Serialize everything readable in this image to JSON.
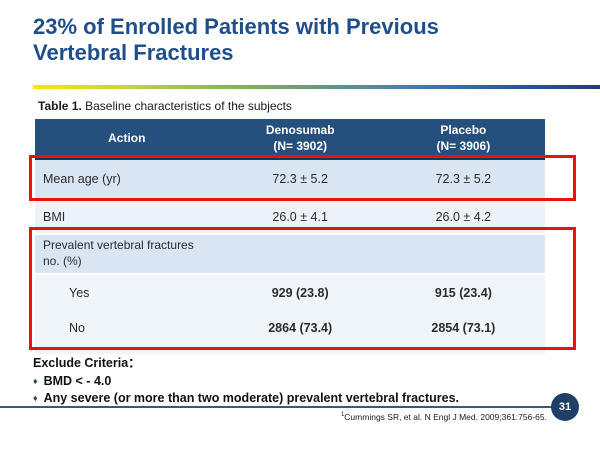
{
  "slide": {
    "title": "23% of Enrolled Patients with Previous Vertebral Fractures",
    "page_number": "31"
  },
  "caption": {
    "prefix": "Table 1.",
    "text": " Baseline characteristics of the subjects"
  },
  "table": {
    "header": {
      "col1": "Action",
      "col2_name": "Denosumab",
      "col2_n": "(N= 3902)",
      "col3_name": "Placebo",
      "col3_n": "(N= 3906)"
    },
    "rows": [
      {
        "label": "Mean age (yr)",
        "denosumab": "72.3 ± 5.2",
        "placebo": "72.3 ± 5.2"
      },
      {
        "label": "BMI",
        "denosumab": "26.0 ± 4.1",
        "placebo": "26.0 ± 4.2"
      },
      {
        "label_line1": "Prevalent vertebral fractures",
        "label_line2": "no. (%)",
        "denosumab": "",
        "placebo": ""
      },
      {
        "label": "Yes",
        "denosumab": "929 (23.8)",
        "placebo": "915 (23.4)"
      },
      {
        "label": "No",
        "denosumab": "2864 (73.4)",
        "placebo": "2854 (73.1)"
      }
    ]
  },
  "exclude": {
    "heading": "Exclude Criteria：",
    "bullet_glyph": "♦",
    "items": [
      "BMD < - 4.0",
      "Any severe (or more than two moderate) prevalent vertebral fractures."
    ]
  },
  "footer": {
    "citation_sup": "1",
    "citation_text": "Cummings SR, et al. N Engl J Med. 2009;361:756-65."
  },
  "colors": {
    "title_blue": "#1F4E8C",
    "table_header_bg": "#25507D",
    "row_highlight_bg": "#D9E5F2",
    "row_light_bg": "#EDF2F9",
    "red_box_border": "#E8120B",
    "footer_line": "#3A5878",
    "page_circle_bg": "#1F4066",
    "gradient_start": "#FFE400",
    "gradient_mid": "#8CBA4F",
    "gradient_end": "#1E3F70"
  }
}
